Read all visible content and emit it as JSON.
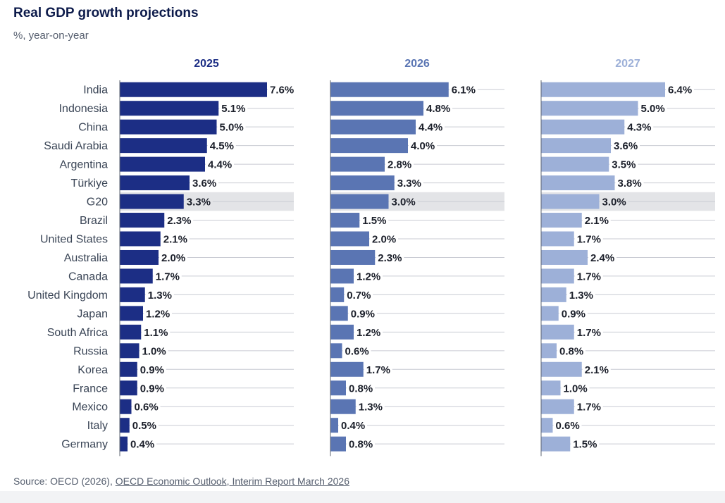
{
  "title": "Real GDP growth projections",
  "subtitle": "%, year-on-year",
  "source": {
    "prefix": "Source: OECD (2026), ",
    "link_text": "OECD Economic Outlook, Interim Report March 2026"
  },
  "chart_data": {
    "type": "bar",
    "orientation": "horizontal",
    "title": "Real GDP growth projections",
    "subtitle": "%, year-on-year",
    "value_suffix": "%",
    "highlight_category": "G20",
    "categories": [
      "India",
      "Indonesia",
      "China",
      "Saudi Arabia",
      "Argentina",
      "Türkiye",
      "G20",
      "Brazil",
      "United States",
      "Australia",
      "Canada",
      "United Kingdom",
      "Japan",
      "South Africa",
      "Russia",
      "Korea",
      "France",
      "Mexico",
      "Italy",
      "Germany"
    ],
    "series": [
      {
        "name": "2025",
        "color": "#1c2e85",
        "values": [
          7.6,
          5.1,
          5.0,
          4.5,
          4.4,
          3.6,
          3.3,
          2.3,
          2.1,
          2.0,
          1.7,
          1.3,
          1.2,
          1.1,
          1.0,
          0.9,
          0.9,
          0.6,
          0.5,
          0.4
        ]
      },
      {
        "name": "2026",
        "color": "#5a75b3",
        "values": [
          6.1,
          4.8,
          4.4,
          4.0,
          2.8,
          3.3,
          3.0,
          1.5,
          2.0,
          2.3,
          1.2,
          0.7,
          0.9,
          1.2,
          0.6,
          1.7,
          0.8,
          1.3,
          0.4,
          0.8
        ]
      },
      {
        "name": "2027",
        "color": "#9db0d8",
        "values": [
          6.4,
          5.0,
          4.3,
          3.6,
          3.5,
          3.8,
          3.0,
          2.1,
          1.7,
          2.4,
          1.7,
          1.3,
          0.9,
          1.7,
          0.8,
          2.1,
          1.0,
          1.7,
          0.6,
          1.5
        ]
      }
    ],
    "xlim": [
      0,
      7.6
    ],
    "grid": true
  }
}
